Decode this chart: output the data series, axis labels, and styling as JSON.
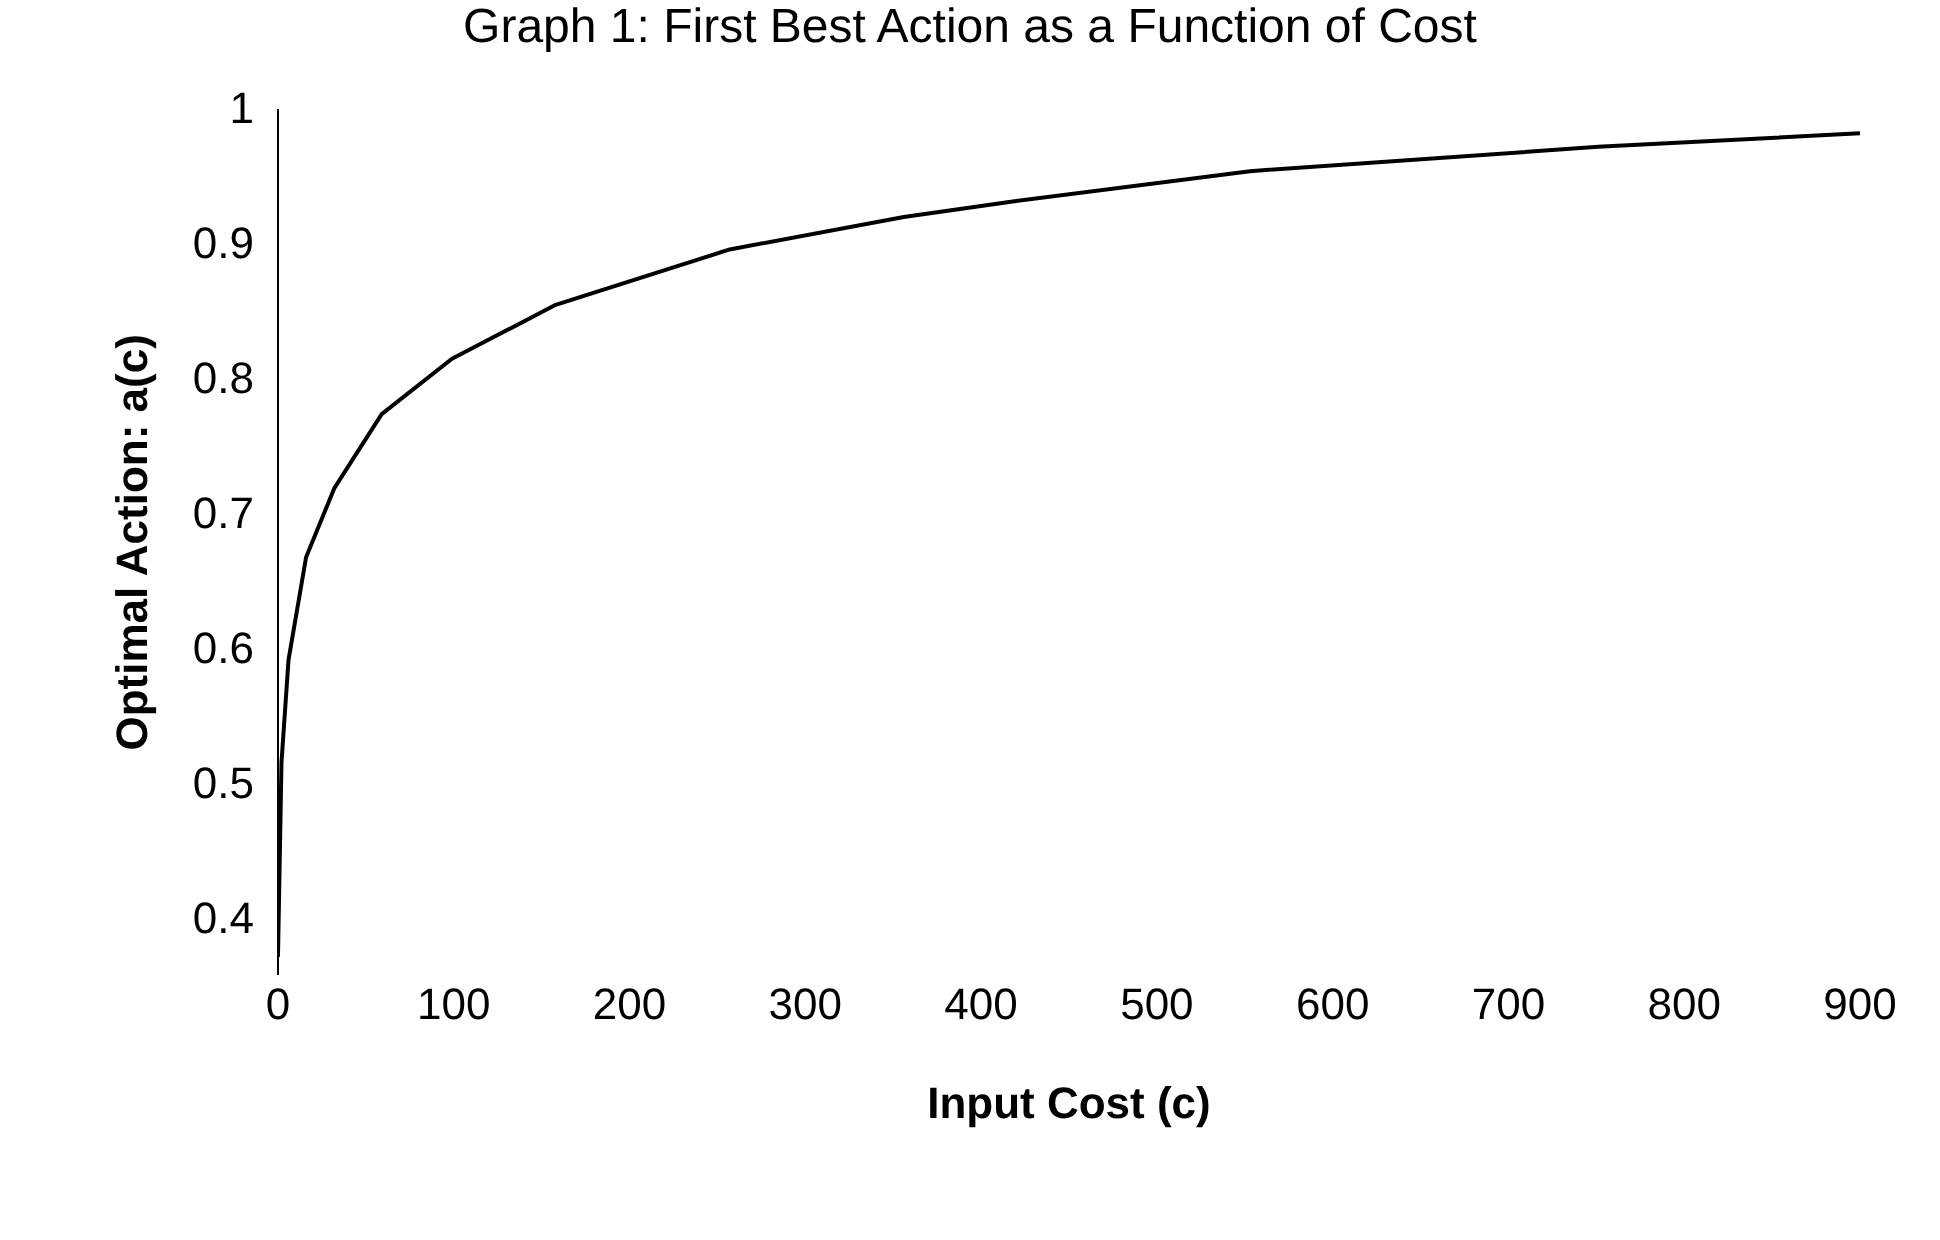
{
  "chart_data": {
    "type": "line",
    "title": "Graph 1: First Best Action as a Function of Cost",
    "xlabel": "Input Cost (c)",
    "ylabel": "Optimal Action: a(c)",
    "x": [
      0,
      2,
      6,
      16,
      32,
      59,
      99,
      158,
      257,
      356,
      415,
      553,
      751,
      900
    ],
    "series": [
      {
        "color": "#000000",
        "values": [
          0.373,
          0.517,
          0.593,
          0.669,
          0.72,
          0.775,
          0.816,
          0.856,
          0.897,
          0.921,
          0.932,
          0.955,
          0.973,
          0.983
        ]
      }
    ],
    "xlim": [
      0,
      900
    ],
    "xticks": [
      0,
      100,
      200,
      300,
      400,
      500,
      600,
      700,
      800,
      900
    ],
    "ylim": [
      0.36,
      1
    ],
    "yticks": [
      0.4,
      0.5,
      0.6,
      0.7,
      0.8,
      0.9,
      1
    ],
    "grid": false,
    "legend": false,
    "marker": "none",
    "line_style": "solid"
  }
}
